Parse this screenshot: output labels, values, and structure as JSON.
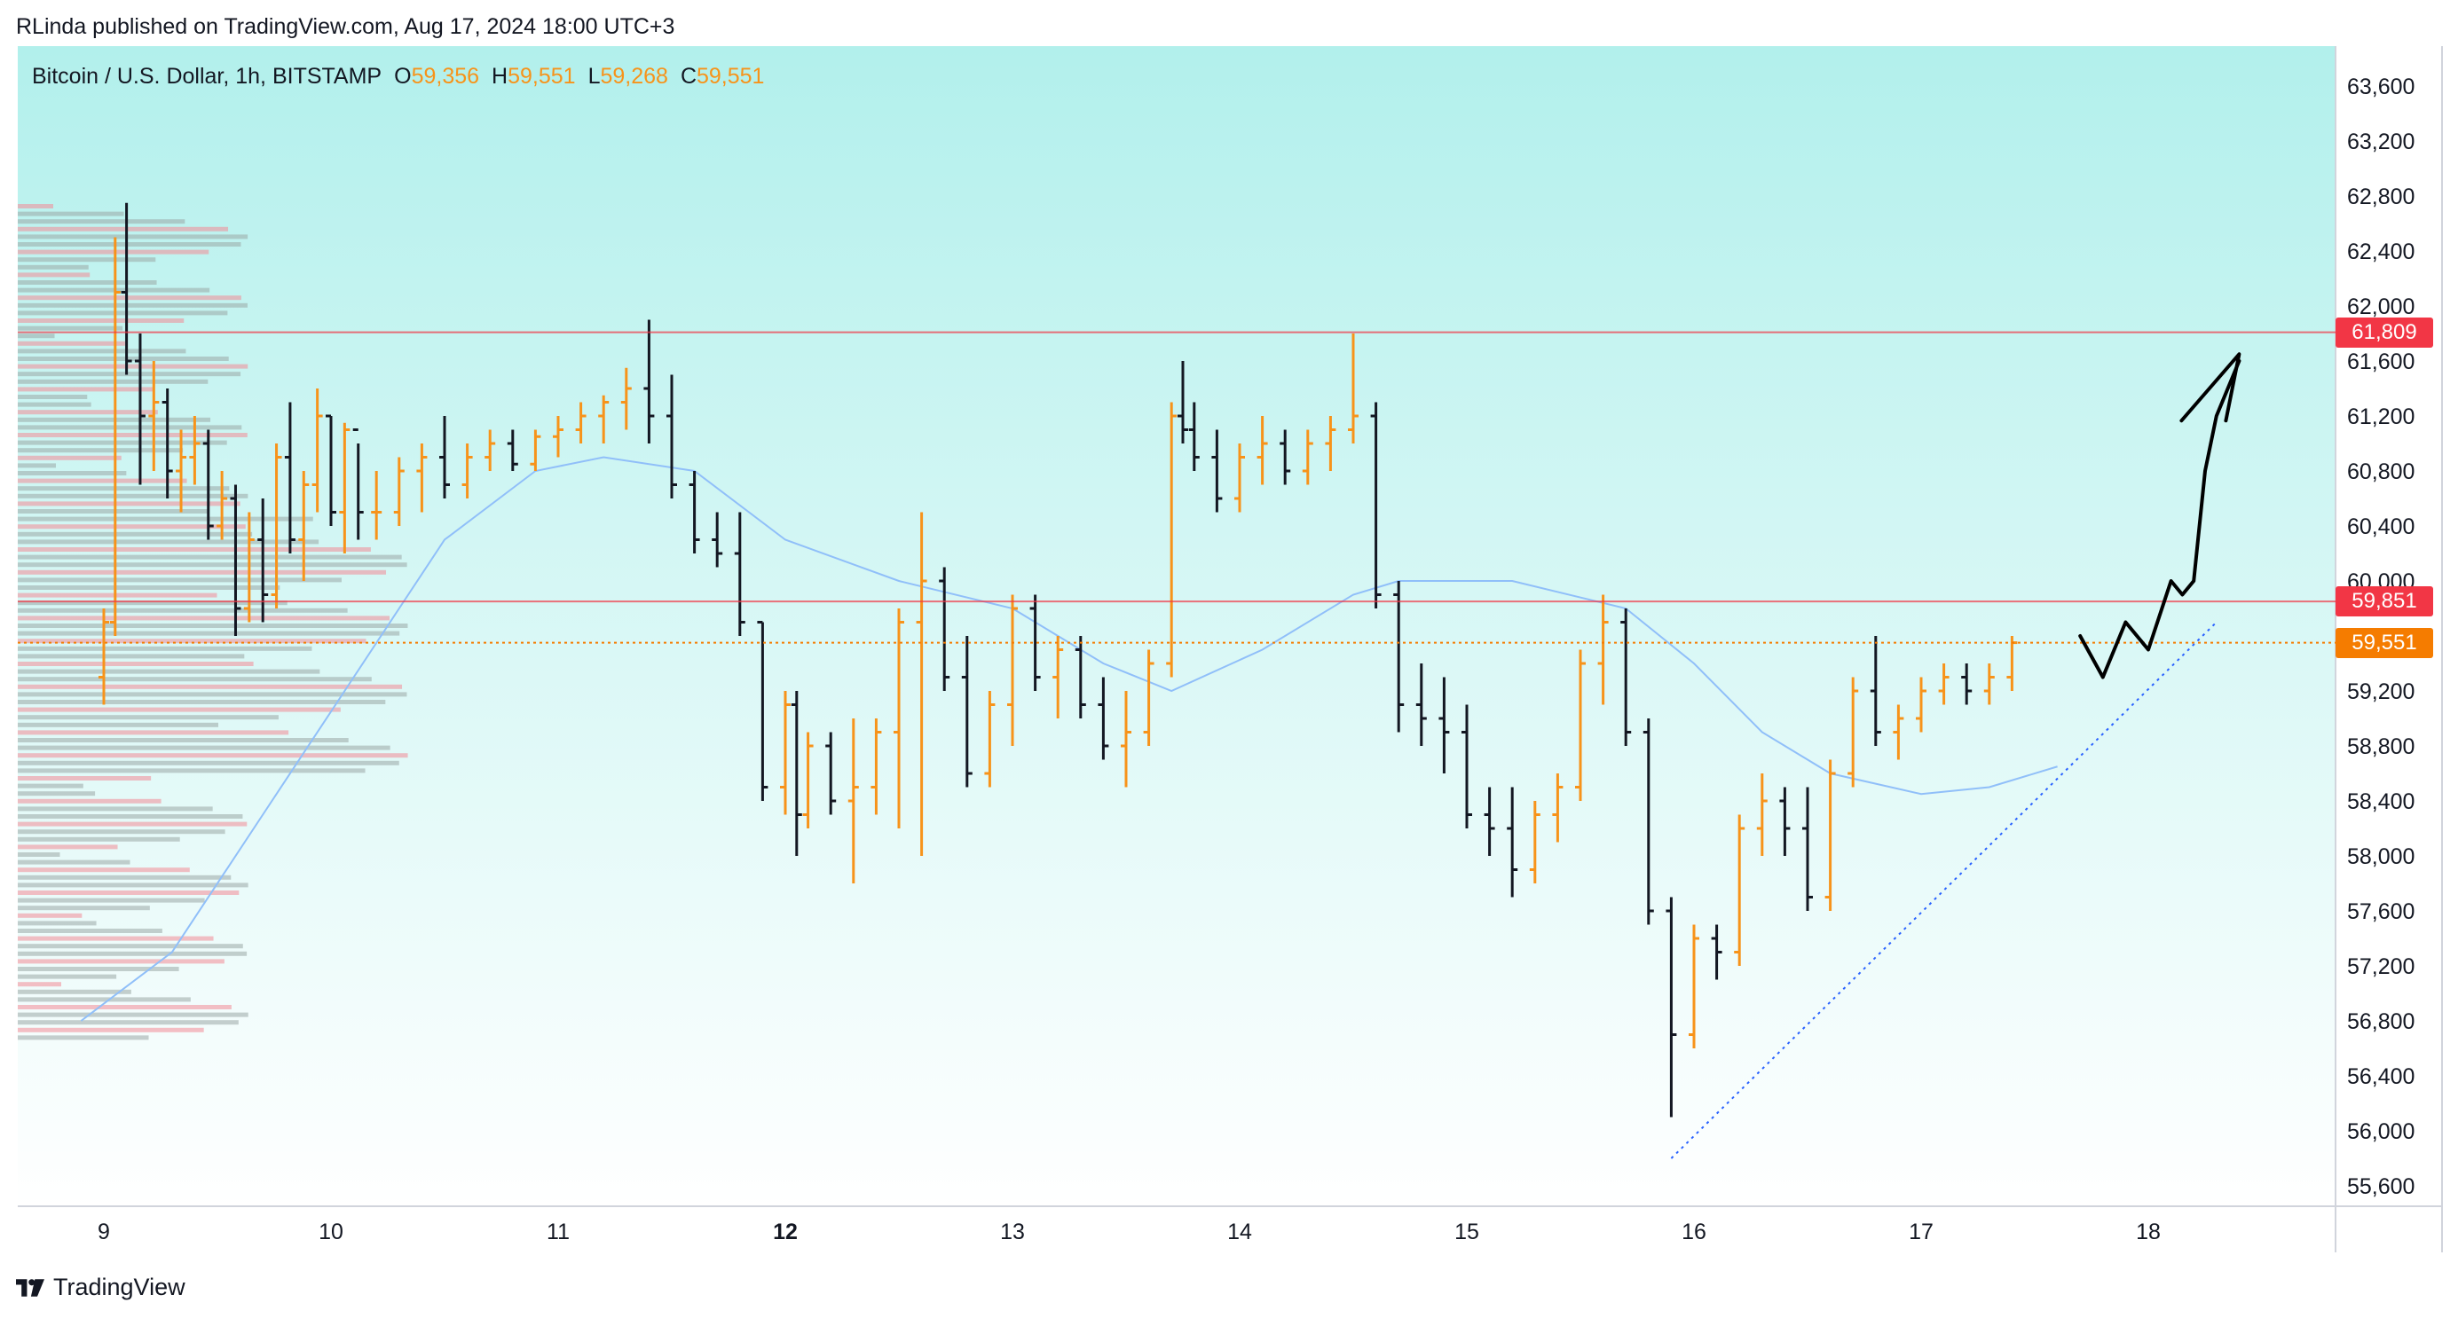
{
  "header": {
    "published": "RLinda published on TradingView.com, Aug 17, 2024 18:00 UTC+3"
  },
  "legend": {
    "symbol": "Bitcoin / U.S. Dollar, 1h, BITSTAMP",
    "open_label": "O",
    "open": "59,356",
    "high_label": "H",
    "high": "59,551",
    "low_label": "L",
    "low": "59,268",
    "close_label": "C",
    "close": "59,551"
  },
  "brand": {
    "name": "TradingView"
  },
  "colors": {
    "bg_top": "#b2f0ec",
    "bg_bottom": "#ffffff",
    "bull": "#f7931a",
    "bear": "#131722",
    "ma": "#90bff9",
    "resistance": "#f23645",
    "last_price": "#f57c00",
    "trendline": "#2962ff"
  },
  "price_tags": [
    {
      "label": "61,809",
      "value": 61809,
      "color": "#f23645"
    },
    {
      "label": "59,851",
      "value": 59851,
      "color": "#f23645"
    },
    {
      "label": "59,551",
      "value": 59551,
      "color": "#f57c00"
    }
  ],
  "chart_data": {
    "type": "candlestick",
    "symbol": "Bitcoin / U.S. Dollar",
    "timeframe": "1h",
    "exchange": "BITSTAMP",
    "x_ticks": [
      "9",
      "10",
      "11",
      "12",
      "13",
      "14",
      "15",
      "16",
      "17",
      "18"
    ],
    "bold_tick": "12",
    "y_ticks": [
      "63,600",
      "63,200",
      "62,800",
      "62,400",
      "62,000",
      "61,600",
      "61,200",
      "60,800",
      "60,400",
      "60,000",
      "59,600",
      "59,200",
      "58,800",
      "58,400",
      "58,000",
      "57,600",
      "57,200",
      "56,800",
      "56,400",
      "56,000",
      "55,600"
    ],
    "ylim": [
      55400,
      63800
    ],
    "ohlc_estimated": [
      [
        9.0,
        59300,
        59800,
        59100,
        59700
      ],
      [
        9.05,
        59700,
        62500,
        59600,
        62100
      ],
      [
        9.1,
        62100,
        62750,
        61500,
        61600
      ],
      [
        9.16,
        61600,
        61800,
        60700,
        61200
      ],
      [
        9.22,
        61200,
        61600,
        60800,
        61300
      ],
      [
        9.28,
        61300,
        61400,
        60600,
        60800
      ],
      [
        9.34,
        60800,
        61100,
        60500,
        60900
      ],
      [
        9.4,
        60900,
        61200,
        60700,
        61000
      ],
      [
        9.46,
        61000,
        61100,
        60300,
        60400
      ],
      [
        9.52,
        60400,
        60800,
        60300,
        60600
      ],
      [
        9.58,
        60600,
        60700,
        59600,
        59800
      ],
      [
        9.64,
        59800,
        60500,
        59700,
        60300
      ],
      [
        9.7,
        60300,
        60600,
        59700,
        59900
      ],
      [
        9.76,
        59900,
        61000,
        59800,
        60900
      ],
      [
        9.82,
        60900,
        61300,
        60200,
        60300
      ],
      [
        9.88,
        60300,
        60800,
        60000,
        60700
      ],
      [
        9.94,
        60700,
        61400,
        60500,
        61200
      ],
      [
        10.0,
        61200,
        61200,
        60400,
        60500
      ],
      [
        10.06,
        60500,
        61150,
        60200,
        61100
      ],
      [
        10.12,
        61100,
        61000,
        60300,
        60500
      ],
      [
        10.2,
        60500,
        60800,
        60300,
        60500
      ],
      [
        10.3,
        60500,
        60900,
        60400,
        60800
      ],
      [
        10.4,
        60800,
        61000,
        60500,
        60900
      ],
      [
        10.5,
        60900,
        61200,
        60600,
        60700
      ],
      [
        10.6,
        60700,
        61000,
        60600,
        60900
      ],
      [
        10.7,
        60900,
        61100,
        60800,
        61000
      ],
      [
        10.8,
        61000,
        61100,
        60800,
        60850
      ],
      [
        10.9,
        60850,
        61100,
        60800,
        61050
      ],
      [
        11.0,
        61050,
        61200,
        60900,
        61100
      ],
      [
        11.1,
        61100,
        61300,
        61000,
        61200
      ],
      [
        11.2,
        61200,
        61350,
        61000,
        61300
      ],
      [
        11.3,
        61300,
        61550,
        61100,
        61400
      ],
      [
        11.4,
        61400,
        61900,
        61000,
        61200
      ],
      [
        11.5,
        61200,
        61500,
        60600,
        60700
      ],
      [
        11.6,
        60700,
        60800,
        60200,
        60300
      ],
      [
        11.7,
        60300,
        60500,
        60100,
        60200
      ],
      [
        11.8,
        60200,
        60500,
        59600,
        59700
      ],
      [
        11.9,
        59700,
        59700,
        58400,
        58500
      ],
      [
        12.0,
        58500,
        59200,
        58300,
        59100
      ],
      [
        12.05,
        59100,
        59200,
        58000,
        58300
      ],
      [
        12.1,
        58300,
        58900,
        58200,
        58800
      ],
      [
        12.2,
        58800,
        58900,
        58300,
        58400
      ],
      [
        12.3,
        58400,
        59000,
        57800,
        58500
      ],
      [
        12.4,
        58500,
        59000,
        58300,
        58900
      ],
      [
        12.5,
        58900,
        59800,
        58200,
        59700
      ],
      [
        12.6,
        59700,
        60500,
        58000,
        60000
      ],
      [
        12.7,
        60000,
        60100,
        59200,
        59300
      ],
      [
        12.8,
        59300,
        59600,
        58500,
        58600
      ],
      [
        12.9,
        58600,
        59200,
        58500,
        59100
      ],
      [
        13.0,
        59100,
        59900,
        58800,
        59800
      ],
      [
        13.1,
        59800,
        59900,
        59200,
        59300
      ],
      [
        13.2,
        59300,
        59600,
        59000,
        59500
      ],
      [
        13.3,
        59500,
        59600,
        59000,
        59100
      ],
      [
        13.4,
        59100,
        59300,
        58700,
        58800
      ],
      [
        13.5,
        58800,
        59200,
        58500,
        58900
      ],
      [
        13.6,
        58900,
        59500,
        58800,
        59400
      ],
      [
        13.7,
        59400,
        61300,
        59300,
        61200
      ],
      [
        13.75,
        61200,
        61600,
        61000,
        61100
      ],
      [
        13.8,
        61100,
        61300,
        60800,
        60900
      ],
      [
        13.9,
        60900,
        61100,
        60500,
        60600
      ],
      [
        14.0,
        60600,
        61000,
        60500,
        60900
      ],
      [
        14.1,
        60900,
        61200,
        60700,
        61000
      ],
      [
        14.2,
        61000,
        61100,
        60700,
        60800
      ],
      [
        14.3,
        60800,
        61100,
        60700,
        61000
      ],
      [
        14.4,
        61000,
        61200,
        60800,
        61100
      ],
      [
        14.5,
        61100,
        61800,
        61000,
        61200
      ],
      [
        14.6,
        61200,
        61300,
        59800,
        59900
      ],
      [
        14.7,
        59900,
        60000,
        58900,
        59100
      ],
      [
        14.8,
        59100,
        59400,
        58800,
        59000
      ],
      [
        14.9,
        59000,
        59300,
        58600,
        58900
      ],
      [
        15.0,
        58900,
        59100,
        58200,
        58300
      ],
      [
        15.1,
        58300,
        58500,
        58000,
        58200
      ],
      [
        15.2,
        58200,
        58500,
        57700,
        57900
      ],
      [
        15.3,
        57900,
        58400,
        57800,
        58300
      ],
      [
        15.4,
        58300,
        58600,
        58100,
        58500
      ],
      [
        15.5,
        58500,
        59500,
        58400,
        59400
      ],
      [
        15.6,
        59400,
        59900,
        59100,
        59700
      ],
      [
        15.7,
        59700,
        59800,
        58800,
        58900
      ],
      [
        15.8,
        58900,
        59000,
        57500,
        57600
      ],
      [
        15.9,
        57600,
        57700,
        56100,
        56700
      ],
      [
        16.0,
        56700,
        57500,
        56600,
        57400
      ],
      [
        16.1,
        57400,
        57500,
        57100,
        57300
      ],
      [
        16.2,
        57300,
        58300,
        57200,
        58200
      ],
      [
        16.3,
        58200,
        58600,
        58000,
        58400
      ],
      [
        16.4,
        58400,
        58500,
        58000,
        58200
      ],
      [
        16.5,
        58200,
        58500,
        57600,
        57700
      ],
      [
        16.6,
        57700,
        58700,
        57600,
        58600
      ],
      [
        16.7,
        58600,
        59300,
        58500,
        59200
      ],
      [
        16.8,
        59200,
        59600,
        58800,
        58900
      ],
      [
        16.9,
        58900,
        59100,
        58700,
        59000
      ],
      [
        17.0,
        59000,
        59300,
        58900,
        59200
      ],
      [
        17.1,
        59200,
        59400,
        59100,
        59300
      ],
      [
        17.2,
        59300,
        59400,
        59100,
        59200
      ],
      [
        17.3,
        59200,
        59400,
        59100,
        59300
      ],
      [
        17.4,
        59300,
        59600,
        59200,
        59551
      ]
    ],
    "levels": [
      61809,
      59851,
      59551
    ],
    "projection_target": 61600
  }
}
